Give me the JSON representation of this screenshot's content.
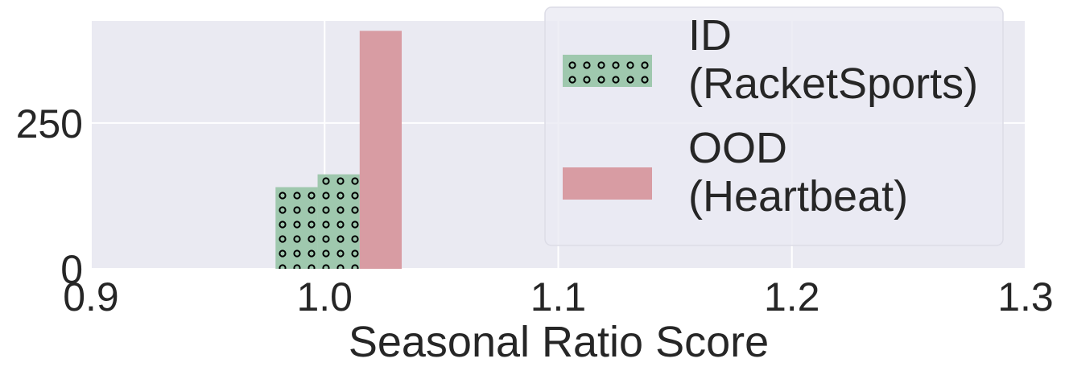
{
  "chart_data": {
    "type": "bar",
    "xlabel": "Seasonal Ratio Score",
    "ylabel": "",
    "xlim": [
      0.9,
      1.3
    ],
    "ylim": [
      0,
      425
    ],
    "x_ticks": [
      0.9,
      1.0,
      1.1,
      1.2,
      1.3
    ],
    "x_tick_labels": [
      "0.9",
      "1.0",
      "1.1",
      "1.2",
      "1.3"
    ],
    "y_ticks": [
      0,
      250
    ],
    "y_tick_labels": [
      "0",
      "250"
    ],
    "grid": true,
    "legend_position": "top-right",
    "series": [
      {
        "name": "ID (RacketSports)",
        "legend_lines": [
          "ID",
          "(RacketSports)"
        ],
        "color": "#9fc8ae",
        "hatch": "circles",
        "bins": [
          {
            "x0": 0.979,
            "x1": 0.997,
            "value": 140
          },
          {
            "x0": 0.997,
            "x1": 1.015,
            "value": 162
          }
        ]
      },
      {
        "name": "OOD (Heartbeat)",
        "legend_lines": [
          "OOD",
          "(Heartbeat)"
        ],
        "color": "#d89ca3",
        "hatch": "none",
        "bins": [
          {
            "x0": 1.015,
            "x1": 1.033,
            "value": 408
          }
        ]
      }
    ]
  }
}
